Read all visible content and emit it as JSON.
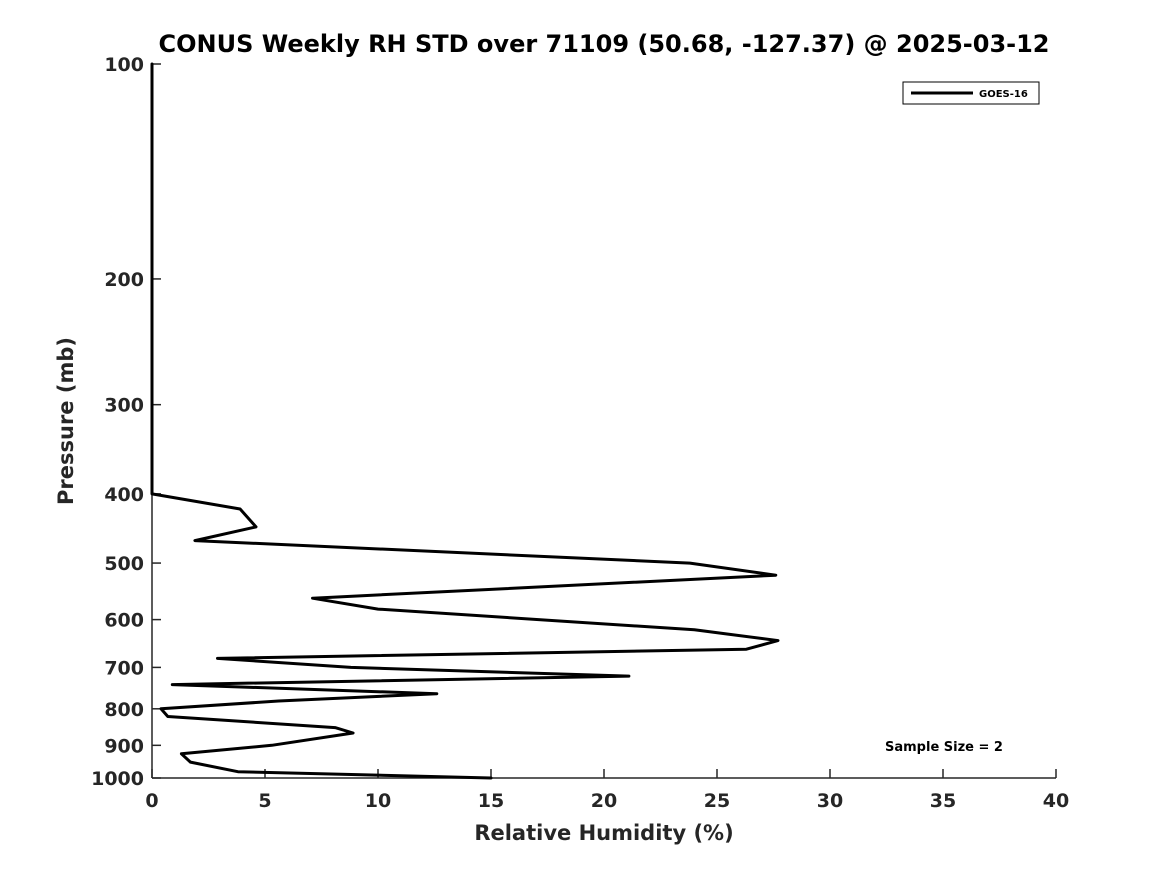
{
  "chart_data": {
    "type": "line",
    "title": "CONUS Weekly RH STD over 71109 (50.68, -127.37) @ 2025-03-12",
    "xlabel": "Relative Humidity (%)",
    "ylabel": "Pressure (mb)",
    "xlim": [
      0,
      40
    ],
    "ylim": [
      1000,
      100
    ],
    "yscale": "log",
    "y_reversed": true,
    "xticks": [
      0,
      5,
      10,
      15,
      20,
      25,
      30,
      35,
      40
    ],
    "xtick_labels": [
      "0",
      "5",
      "10",
      "15",
      "20",
      "25",
      "30",
      "35",
      "40"
    ],
    "yticks": [
      100,
      200,
      300,
      400,
      500,
      600,
      700,
      800,
      900,
      1000
    ],
    "ytick_labels": [
      "100",
      "200",
      "300",
      "400",
      "500",
      "600",
      "700",
      "800",
      "900",
      "1000"
    ],
    "grid": false,
    "legend_position": "top-right",
    "annotation": "Sample Size = 2",
    "series": [
      {
        "name": "GOES-16",
        "color": "#000000",
        "x": [
          0,
          0,
          0,
          0,
          0,
          3.9,
          4.6,
          1.9,
          23.8,
          27.6,
          7.1,
          10,
          24,
          27.7,
          26.3,
          2.9,
          8.8,
          21.1,
          0.9,
          12.6,
          5.6,
          0.4,
          0.7,
          8.1,
          8.9,
          5.3,
          1.3,
          1.7,
          3.8,
          15
        ],
        "y": [
          100,
          200,
          300,
          350,
          400,
          420,
          445,
          465,
          500,
          520,
          560,
          580,
          620,
          642,
          660,
          680,
          700,
          720,
          740,
          762,
          780,
          800,
          820,
          850,
          865,
          900,
          925,
          950,
          980,
          1000
        ]
      }
    ]
  }
}
